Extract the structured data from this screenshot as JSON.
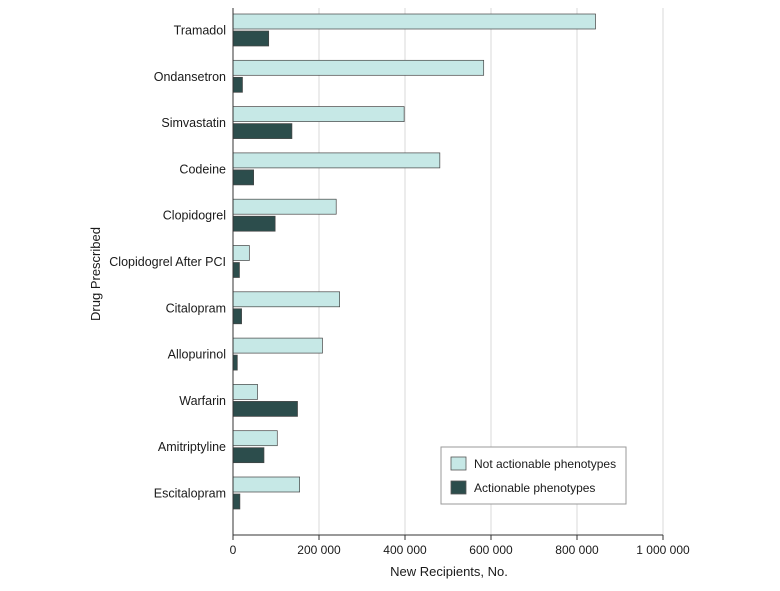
{
  "chart_data": {
    "type": "bar",
    "orientation": "horizontal",
    "title": "",
    "xlabel": "New Recipients, No.",
    "ylabel": "Drug Prescribed",
    "xlim": [
      0,
      1000000
    ],
    "x_ticks": [
      0,
      200000,
      400000,
      600000,
      800000,
      1000000
    ],
    "x_tick_labels": [
      "0",
      "200 000",
      "400 000",
      "600 000",
      "800 000",
      "1 000 000"
    ],
    "grid": "vertical",
    "legend_position": "bottom-right",
    "categories": [
      "Tramadol",
      "Ondansetron",
      "Simvastatin",
      "Codeine",
      "Clopidogrel",
      "Clopidogrel After PCI",
      "Citalopram",
      "Allopurinol",
      "Warfarin",
      "Amitriptyline",
      "Escitalopram"
    ],
    "series": [
      {
        "name": "Not actionable phenotypes",
        "color": "#c6e8e6",
        "values": [
          843000,
          583000,
          398000,
          481000,
          240000,
          38000,
          248000,
          208000,
          57000,
          103000,
          155000
        ]
      },
      {
        "name": "Actionable phenotypes",
        "color": "#2c4d4c",
        "values": [
          83000,
          22000,
          137000,
          48000,
          98000,
          15000,
          20000,
          10000,
          150000,
          72000,
          16000
        ]
      }
    ]
  }
}
